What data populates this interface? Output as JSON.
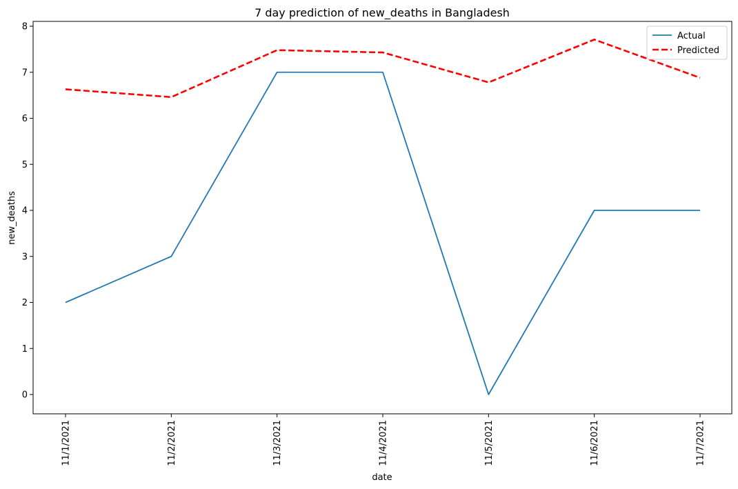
{
  "chart_data": {
    "type": "line",
    "title": "7 day prediction of new_deaths in Bangladesh",
    "xlabel": "date",
    "ylabel": "new_deaths",
    "x": [
      "11/1/2021",
      "11/2/2021",
      "11/3/2021",
      "11/4/2021",
      "11/5/2021",
      "11/6/2021",
      "11/7/2021"
    ],
    "ylim": [
      -0.4,
      8.1
    ],
    "yticks": [
      0,
      1,
      2,
      3,
      4,
      5,
      6,
      7,
      8
    ],
    "grid": false,
    "legend_position": "top-right",
    "series": [
      {
        "name": "Actual",
        "values": [
          2,
          3,
          7,
          7,
          0,
          4,
          4
        ],
        "color": "#1f77b4",
        "style": "solid"
      },
      {
        "name": "Predicted",
        "values": [
          6.63,
          6.46,
          7.48,
          7.43,
          6.78,
          7.71,
          6.88
        ],
        "color": "#ff0000",
        "style": "dashed"
      }
    ]
  }
}
